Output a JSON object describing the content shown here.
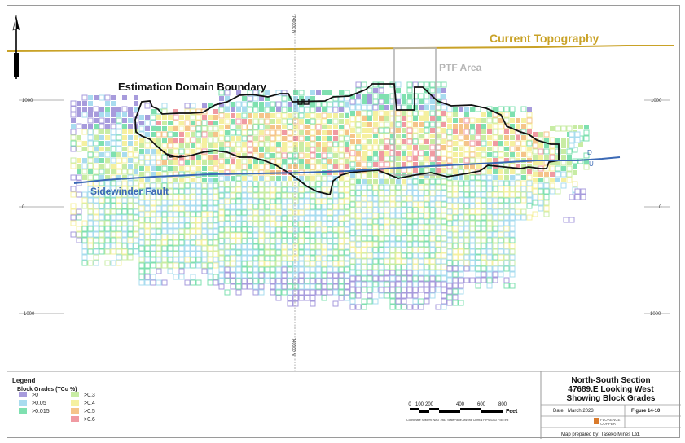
{
  "map": {
    "labels": {
      "topography": "Current Topography",
      "ptf": "PTF Area",
      "domain_boundary": "Estimation Domain Boundary",
      "fault": "Sidewinder Fault",
      "fault_d": "D",
      "fault_u": "U",
      "northing_top": "740000 N",
      "northing_bottom": "740000 N"
    },
    "elevation_ticks": [
      "1000",
      "0",
      "-1000"
    ],
    "colors": {
      "topography": "#c9a227",
      "fault": "#3b69b5",
      "boundary": "#111111",
      "ptf": "#b5b5b5"
    }
  },
  "legend": {
    "title": "Legend",
    "subtitle": "Block Grades (TCu %)",
    "items": [
      {
        "label": ">0",
        "color": "#a79bdc"
      },
      {
        "label": ">0.05",
        "color": "#a9dcef"
      },
      {
        "label": ">0.015",
        "color": "#7fe0b0"
      },
      {
        "label": ">0.3",
        "color": "#c8eca4"
      },
      {
        "label": ">0.4",
        "color": "#f5f0a0"
      },
      {
        "label": ">0.5",
        "color": "#f5c48a"
      },
      {
        "label": ">0.6",
        "color": "#f09aa2"
      }
    ]
  },
  "scalebar": {
    "ticks": [
      "0",
      "100",
      "200",
      "400",
      "600",
      "800"
    ],
    "unit": "Feet",
    "coord_note": "Coordinate System: NAD 1983 StatePlane Arizona Central FIPS 0202 Foot Intl"
  },
  "title_block": {
    "title_line1": "North-South Section",
    "title_line2": "47689.E Looking West",
    "title_line3": "Showing Block Grades",
    "date_label": "Date:",
    "date_value": "March 2023",
    "figure": "Figure 14-10",
    "logo_line1": "FLORENCE",
    "logo_line2": "COPPER",
    "prepared_by": "Map prepared by: Taseko Mines Ltd."
  }
}
